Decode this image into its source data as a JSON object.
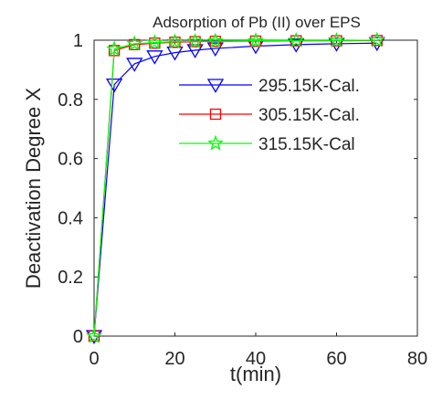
{
  "chart_data": {
    "type": "line",
    "title": "Adsorption of Pb (II) over EPS",
    "xlabel": "t(min)",
    "ylabel": "Deactivation Degree X",
    "xlim": [
      0,
      80
    ],
    "ylim": [
      0,
      1
    ],
    "x_ticks": [
      "0",
      "20",
      "40",
      "60",
      "80"
    ],
    "y_ticks": [
      "0",
      "0.2",
      "0.4",
      "0.6",
      "0.8",
      "1"
    ],
    "grid": false,
    "legend_position": "upper-right inside",
    "x": [
      0,
      5,
      10,
      15,
      20,
      25,
      30,
      40,
      50,
      60,
      70
    ],
    "series": [
      {
        "name": "295.15K-Cal.",
        "color": "#0000ff",
        "marker": "triangle-down",
        "values": [
          0,
          0.85,
          0.92,
          0.945,
          0.958,
          0.966,
          0.972,
          0.98,
          0.985,
          0.988,
          0.99
        ]
      },
      {
        "name": "305.15K-Cal.",
        "color": "#ff0000",
        "marker": "square",
        "values": [
          0,
          0.965,
          0.985,
          0.99,
          0.993,
          0.995,
          0.996,
          0.997,
          0.998,
          0.998,
          0.999
        ]
      },
      {
        "name": "315.15K-Cal",
        "color": "#00ff00",
        "marker": "pentagram",
        "values": [
          0,
          0.97,
          0.988,
          0.992,
          0.995,
          0.996,
          0.997,
          0.998,
          0.999,
          0.999,
          1.0
        ]
      }
    ]
  }
}
